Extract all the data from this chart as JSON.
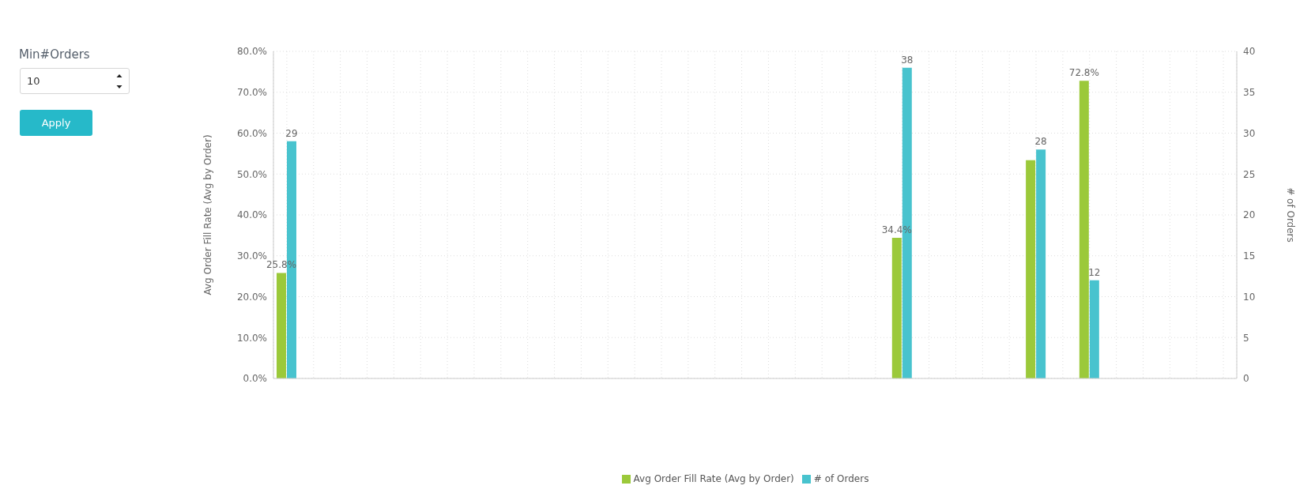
{
  "chart_data": {
    "type": "bar",
    "ylabel": "Avg Order Fill Rate (Avg by Order)",
    "y2label": "# of Orders",
    "categories": [
      null,
      null,
      null,
      null,
      null,
      null,
      null,
      null,
      null,
      null,
      null,
      null,
      null,
      null,
      null,
      null,
      null,
      null,
      null,
      null,
      null,
      null,
      null,
      null,
      null,
      null,
      null,
      null,
      null,
      null,
      null,
      null,
      null,
      null,
      null,
      null
    ],
    "series": [
      {
        "name": "Avg Order Fill Rate (Avg by Order)",
        "color": "#9bc93a",
        "values": [
          25.8,
          null,
          null,
          null,
          null,
          null,
          null,
          null,
          null,
          null,
          null,
          null,
          null,
          null,
          null,
          null,
          null,
          null,
          null,
          null,
          null,
          null,
          null,
          34.4,
          null,
          null,
          null,
          null,
          53.4,
          null,
          72.8,
          null,
          null,
          null,
          null,
          null
        ],
        "value_labels": [
          "25.8%",
          null,
          null,
          null,
          null,
          null,
          null,
          null,
          null,
          null,
          null,
          null,
          null,
          null,
          null,
          null,
          null,
          null,
          null,
          null,
          null,
          null,
          null,
          "34.4%",
          null,
          null,
          null,
          null,
          null,
          null,
          "72.8%",
          null,
          null,
          null,
          null,
          null
        ]
      },
      {
        "name": "# of Orders",
        "color": "#48c3ce",
        "axis": "y2",
        "values": [
          29,
          null,
          null,
          null,
          null,
          null,
          null,
          null,
          null,
          null,
          null,
          null,
          null,
          null,
          null,
          null,
          null,
          null,
          null,
          null,
          null,
          null,
          null,
          38,
          null,
          null,
          null,
          null,
          28,
          null,
          12,
          null,
          null,
          null,
          null,
          null
        ],
        "value_labels": [
          "29",
          null,
          null,
          null,
          null,
          null,
          null,
          null,
          null,
          null,
          null,
          null,
          null,
          null,
          null,
          null,
          null,
          null,
          null,
          null,
          null,
          null,
          null,
          "38",
          null,
          null,
          null,
          null,
          "28",
          null,
          "12",
          null,
          null,
          null,
          null,
          null
        ]
      }
    ],
    "ylim": [
      0,
      80
    ],
    "yticks": [
      {
        "value": 0,
        "label": "0.0%"
      },
      {
        "value": 10,
        "label": "10.0%"
      },
      {
        "value": 20,
        "label": "20.0%"
      },
      {
        "value": 30,
        "label": "30.0%"
      },
      {
        "value": 40,
        "label": "40.0%"
      },
      {
        "value": 50,
        "label": "50.0%"
      },
      {
        "value": 60,
        "label": "60.0%"
      },
      {
        "value": 70,
        "label": "70.0%"
      },
      {
        "value": 80,
        "label": "80.0%"
      }
    ],
    "y2lim": [
      0,
      40
    ],
    "y2ticks": [
      0,
      5,
      10,
      15,
      20,
      25,
      30,
      35,
      40
    ],
    "grid": true,
    "legend": "bottom",
    "annotations": [
      "Min#Orders",
      "10",
      "Apply"
    ]
  }
}
